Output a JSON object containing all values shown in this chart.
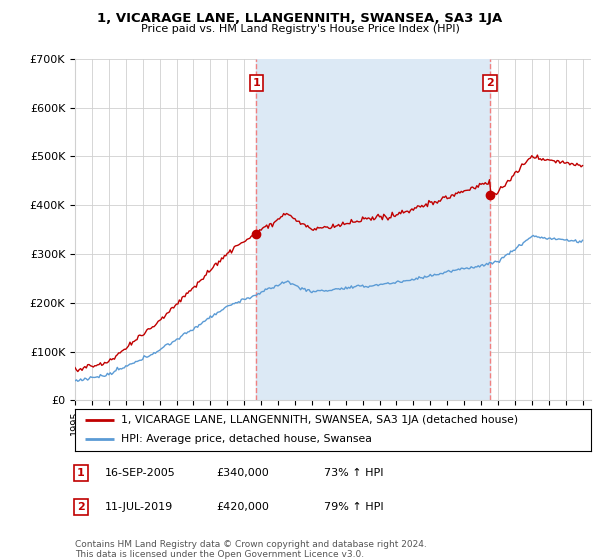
{
  "title": "1, VICARAGE LANE, LLANGENNITH, SWANSEA, SA3 1JA",
  "subtitle": "Price paid vs. HM Land Registry's House Price Index (HPI)",
  "ylabel_ticks": [
    "£0",
    "£100K",
    "£200K",
    "£300K",
    "£400K",
    "£500K",
    "£600K",
    "£700K"
  ],
  "ytick_values": [
    0,
    100000,
    200000,
    300000,
    400000,
    500000,
    600000,
    700000
  ],
  "ylim": [
    0,
    700000
  ],
  "xlim_start": 1995.0,
  "xlim_end": 2025.5,
  "sale1_year": 2005.72,
  "sale1_price": 340000,
  "sale1_label": "1",
  "sale2_year": 2019.53,
  "sale2_price": 420000,
  "sale2_label": "2",
  "legend_line1": "1, VICARAGE LANE, LLANGENNITH, SWANSEA, SA3 1JA (detached house)",
  "legend_line2": "HPI: Average price, detached house, Swansea",
  "table_row1": [
    "1",
    "16-SEP-2005",
    "£340,000",
    "73% ↑ HPI"
  ],
  "table_row2": [
    "2",
    "11-JUL-2019",
    "£420,000",
    "79% ↑ HPI"
  ],
  "footnote1": "Contains HM Land Registry data © Crown copyright and database right 2024.",
  "footnote2": "This data is licensed under the Open Government Licence v3.0.",
  "hpi_color": "#5b9bd5",
  "price_color": "#c00000",
  "shade_color": "#dce9f5",
  "dashed_color": "#f08080",
  "background_color": "#ffffff",
  "grid_color": "#d0d0d0"
}
